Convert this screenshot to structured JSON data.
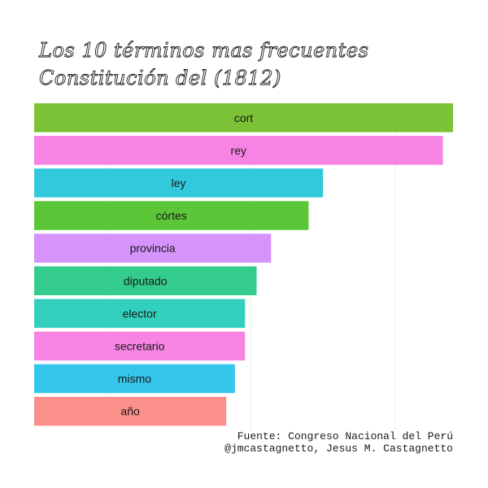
{
  "chart_data": {
    "type": "bar",
    "orientation": "horizontal",
    "title": "Los 10 términos mas frecuentes",
    "subtitle": "Constitución del (1812)",
    "categories": [
      "cort",
      "rey",
      "ley",
      "córtes",
      "provincia",
      "diputado",
      "elector",
      "secretario",
      "mismo",
      "año"
    ],
    "values": [
      290,
      283,
      200,
      190,
      164,
      154,
      146,
      146,
      139,
      133
    ],
    "xlim": [
      0,
      290
    ],
    "colors": [
      "#7cc236",
      "#f783e3",
      "#33c9dc",
      "#5bc738",
      "#d593fb",
      "#34cc8c",
      "#32cfbc",
      "#f783e3",
      "#36c6ec",
      "#fa9089"
    ],
    "grid": true,
    "xlabel": "",
    "ylabel": "",
    "caption": [
      "Fuente: Congreso Nacional del Perú",
      "@jmcastagnetto, Jesus M. Castagnetto"
    ]
  }
}
